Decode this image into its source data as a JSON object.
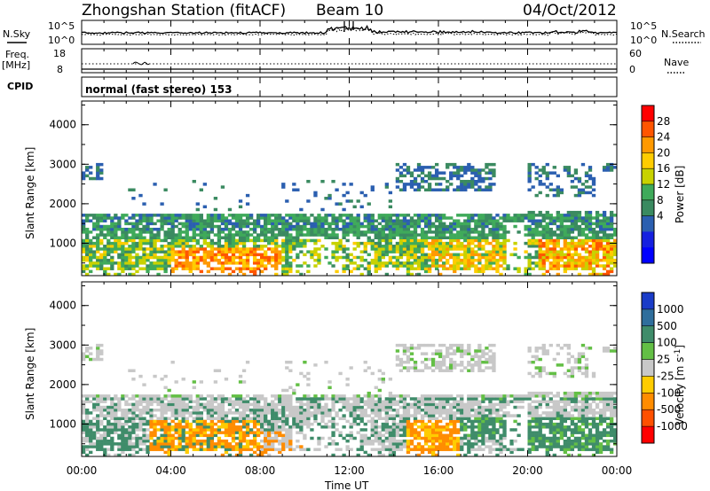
{
  "header": {
    "station": "Zhongshan Station (fitACF)",
    "beam": "Beam 10",
    "date": "04/Oct/2012"
  },
  "top_panels": {
    "nsky_label": "N.Sky",
    "nsky_ticks": [
      "10^5",
      "10^0"
    ],
    "nsearch_label": "N.Search",
    "nsearch_ticks": [
      "10^5",
      "10^0"
    ],
    "freq_label": "Freq.",
    "freq_unit": "[MHz]",
    "freq_ticks": [
      "18",
      "8"
    ],
    "nave_label": "Nave",
    "nave_ticks": [
      "60",
      "0"
    ],
    "cpid_label": "CPID",
    "cpid_text": "normal (fast stereo) 153"
  },
  "chart_data": [
    {
      "type": "heatmap",
      "name": "power",
      "ylabel": "Slant Range [km]",
      "ylim": [
        180,
        4600
      ],
      "yticks": [
        "4000",
        "3000",
        "2000",
        "1000"
      ],
      "xlim": [
        0,
        24
      ],
      "xticks": [
        "00:00",
        "04:00",
        "08:00",
        "12:00",
        "16:00",
        "20:00",
        "00:00"
      ],
      "colorbar": {
        "label": "Power [dB]",
        "ticks": [
          "28",
          "24",
          "20",
          "16",
          "12",
          "8",
          "4"
        ],
        "colors": [
          "#ff0000",
          "#ff5500",
          "#ff9900",
          "#ffcc00",
          "#c8d200",
          "#3faa5a",
          "#3a8a60",
          "#2b5fb0",
          "#1520e0",
          "#0000ff"
        ]
      }
    },
    {
      "type": "heatmap",
      "name": "velocity",
      "ylabel": "Slant Range [km]",
      "ylim": [
        180,
        4600
      ],
      "yticks": [
        "4000",
        "3000",
        "2000",
        "1000"
      ],
      "xlim": [
        0,
        24
      ],
      "xticks": [
        "00:00",
        "04:00",
        "08:00",
        "12:00",
        "16:00",
        "20:00",
        "00:00"
      ],
      "xlabel": "Time UT",
      "colorbar": {
        "label": "Velocity [m s",
        "label_superscript": "-1",
        "label_suffix": "]",
        "ticks": [
          "1000",
          "500",
          "100",
          "25",
          "-25",
          "-100",
          "-500",
          "-1000"
        ],
        "colors": [
          "#1a3cc8",
          "#2f6e9c",
          "#3f8c6a",
          "#63bf45",
          "#c8c8c8",
          "#ffcc00",
          "#ff8c00",
          "#ff5000",
          "#ff0000"
        ]
      }
    }
  ]
}
